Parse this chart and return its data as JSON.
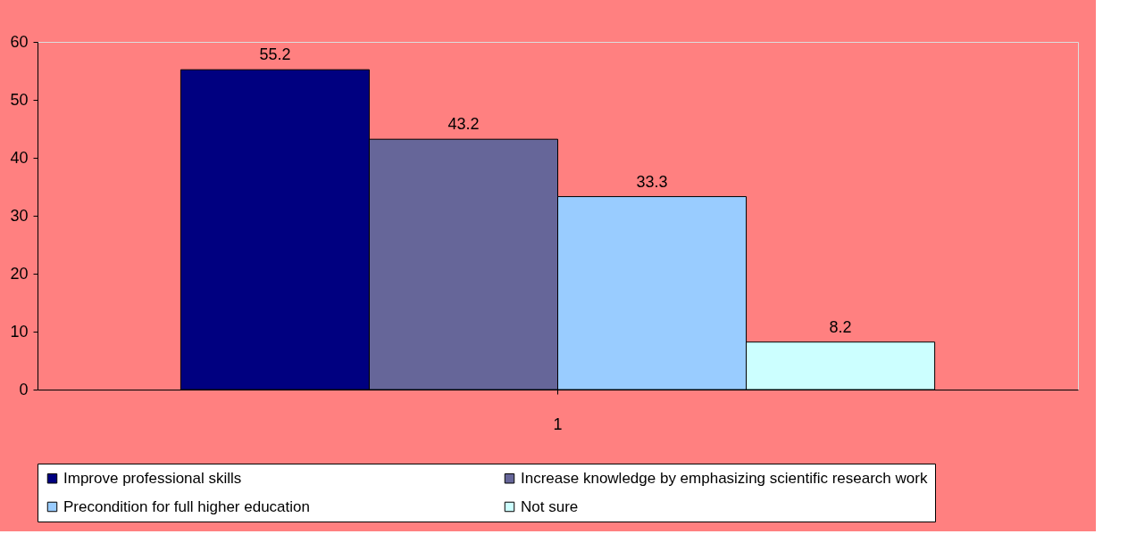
{
  "chart_data": {
    "type": "bar",
    "categories": [
      "1"
    ],
    "series": [
      {
        "name": "Improve professional skills",
        "color": "#000080",
        "values": [
          55.2
        ]
      },
      {
        "name": "Increase knowledge by emphasizing scientific research work",
        "color": "#666699",
        "values": [
          43.2
        ]
      },
      {
        "name": "Precondition for full higher education",
        "color": "#99ccff",
        "values": [
          33.3
        ]
      },
      {
        "name": "Not sure",
        "color": "#ccffff",
        "values": [
          8.2
        ]
      }
    ],
    "ylim": [
      0,
      60
    ],
    "yticks": [
      0,
      10,
      20,
      30,
      40,
      50,
      60
    ],
    "data_labels": true,
    "grid": false,
    "legend": "bottom"
  }
}
